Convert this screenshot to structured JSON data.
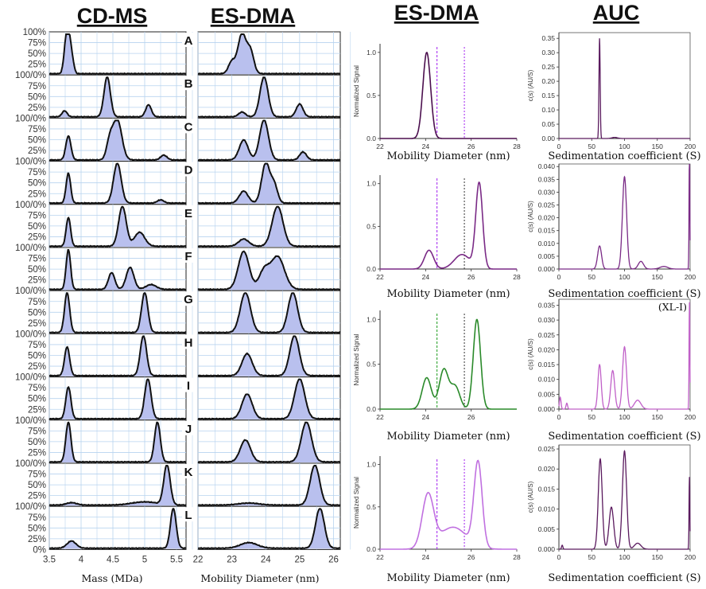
{
  "headers": {
    "cdms": "CD-MS",
    "esdma": "ES-DMA",
    "esdma2": "ES-DMA",
    "auc": "AUC"
  },
  "stack_percent_ticks": [
    "100%",
    "75%",
    "50%",
    "25%",
    "0%"
  ],
  "stack_shared_label": "100/0%",
  "panel_letters": [
    "A",
    "B",
    "C",
    "D",
    "E",
    "F",
    "G",
    "H",
    "I",
    "J",
    "K",
    "L"
  ],
  "colors": {
    "fill": "#b9c0ee",
    "stack_line": "#111111",
    "grid": "#b7d3ef",
    "purple_dark": "#4b0f4e",
    "purple": "#7a2a86",
    "green": "#2a8a2a",
    "lavender": "#c070e0",
    "auc_light": "#c060c8",
    "auc_dark": "#5a1a5e",
    "marker_purple": "#a020f0",
    "marker_green": "#1a9a1a",
    "marker_dark": "#333333"
  },
  "chart_data": [
    {
      "id": "cdms",
      "type": "area",
      "title": "CD-MS",
      "xlabel": "Mass (MDa)",
      "ylabel": "",
      "xlim": [
        3.5,
        5.65
      ],
      "ylim": [
        0,
        100
      ],
      "xticks": [
        3.5,
        4,
        4.5,
        5,
        5.5
      ],
      "xtick_labels": [
        "3.5",
        "4",
        "4.5",
        "5",
        "5.5"
      ],
      "grid": true,
      "panels": [
        {
          "label": "A",
          "peaks": [
            [
              3.8,
              100,
              0.035
            ],
            [
              3.75,
              45,
              0.03
            ],
            [
              3.86,
              30,
              0.03
            ]
          ]
        },
        {
          "label": "B",
          "peaks": [
            [
              3.74,
              15,
              0.04
            ],
            [
              4.41,
              100,
              0.05
            ],
            [
              5.06,
              30,
              0.045
            ]
          ]
        },
        {
          "label": "C",
          "peaks": [
            [
              3.8,
              60,
              0.04
            ],
            [
              4.57,
              100,
              0.07
            ],
            [
              4.45,
              45,
              0.05
            ],
            [
              5.3,
              12,
              0.05
            ]
          ]
        },
        {
          "label": "D",
          "peaks": [
            [
              3.8,
              75,
              0.035
            ],
            [
              4.57,
              100,
              0.06
            ],
            [
              5.25,
              8,
              0.05
            ]
          ]
        },
        {
          "label": "E",
          "peaks": [
            [
              3.8,
              72,
              0.035
            ],
            [
              4.65,
              100,
              0.06
            ],
            [
              4.92,
              35,
              0.08
            ]
          ]
        },
        {
          "label": "F",
          "peaks": [
            [
              3.8,
              100,
              0.035
            ],
            [
              4.48,
              42,
              0.05
            ],
            [
              4.77,
              55,
              0.06
            ],
            [
              5.1,
              12,
              0.08
            ]
          ]
        },
        {
          "label": "G",
          "peaks": [
            [
              3.78,
              100,
              0.04
            ],
            [
              5.0,
              100,
              0.05
            ]
          ]
        },
        {
          "label": "H",
          "peaks": [
            [
              3.78,
              72,
              0.04
            ],
            [
              4.98,
              100,
              0.05
            ]
          ]
        },
        {
          "label": "I",
          "peaks": [
            [
              3.8,
              80,
              0.04
            ],
            [
              5.05,
              100,
              0.05
            ]
          ]
        },
        {
          "label": "J",
          "peaks": [
            [
              3.8,
              100,
              0.04
            ],
            [
              5.2,
              100,
              0.045
            ]
          ]
        },
        {
          "label": "K",
          "peaks": [
            [
              3.85,
              6,
              0.08
            ],
            [
              5.35,
              100,
              0.05
            ],
            [
              5.0,
              8,
              0.2
            ]
          ]
        },
        {
          "label": "L",
          "peaks": [
            [
              3.85,
              18,
              0.07
            ],
            [
              5.45,
              100,
              0.045
            ]
          ]
        }
      ]
    },
    {
      "id": "esdma_stack",
      "type": "area",
      "title": "ES-DMA",
      "xlabel": "Mobility Diameter (nm)",
      "ylabel": "",
      "xlim": [
        22,
        26.2
      ],
      "ylim": [
        0,
        100
      ],
      "xticks": [
        22,
        23,
        24,
        25,
        26
      ],
      "xtick_labels": [
        "22",
        "23",
        "24",
        "25",
        "26"
      ],
      "grid": true,
      "panels": [
        {
          "label": "A",
          "peaks": [
            [
              23.3,
              100,
              0.12
            ],
            [
              23.55,
              55,
              0.1
            ],
            [
              23.0,
              30,
              0.1
            ]
          ]
        },
        {
          "label": "B",
          "peaks": [
            [
              23.3,
              12,
              0.1
            ],
            [
              23.95,
              100,
              0.12
            ],
            [
              25.0,
              32,
              0.1
            ]
          ]
        },
        {
          "label": "C",
          "peaks": [
            [
              23.35,
              50,
              0.13
            ],
            [
              23.95,
              100,
              0.13
            ],
            [
              25.1,
              20,
              0.1
            ]
          ]
        },
        {
          "label": "D",
          "peaks": [
            [
              23.35,
              30,
              0.13
            ],
            [
              24.0,
              100,
              0.12
            ],
            [
              24.25,
              45,
              0.1
            ]
          ]
        },
        {
          "label": "E",
          "peaks": [
            [
              23.35,
              18,
              0.15
            ],
            [
              24.35,
              100,
              0.16
            ]
          ]
        },
        {
          "label": "F",
          "peaks": [
            [
              23.35,
              95,
              0.16
            ],
            [
              24.35,
              82,
              0.2
            ],
            [
              23.95,
              45,
              0.15
            ]
          ]
        },
        {
          "label": "G",
          "peaks": [
            [
              23.4,
              100,
              0.15
            ],
            [
              24.8,
              100,
              0.14
            ]
          ]
        },
        {
          "label": "H",
          "peaks": [
            [
              23.45,
              55,
              0.15
            ],
            [
              24.85,
              100,
              0.14
            ]
          ]
        },
        {
          "label": "I",
          "peaks": [
            [
              23.45,
              62,
              0.15
            ],
            [
              25.0,
              100,
              0.15
            ]
          ]
        },
        {
          "label": "J",
          "peaks": [
            [
              23.4,
              55,
              0.15
            ],
            [
              25.2,
              100,
              0.15
            ]
          ]
        },
        {
          "label": "K",
          "peaks": [
            [
              23.5,
              5,
              0.3
            ],
            [
              25.45,
              100,
              0.14
            ]
          ]
        },
        {
          "label": "L",
          "peaks": [
            [
              23.5,
              14,
              0.25
            ],
            [
              25.6,
              100,
              0.13
            ]
          ]
        }
      ]
    },
    {
      "id": "esdma_1",
      "type": "line",
      "xlabel": "Mobility Diameter (nm)",
      "ylabel": "Normalized Signal",
      "xlim": [
        22,
        28
      ],
      "ylim": [
        0,
        1.1
      ],
      "xticks": [
        22,
        24,
        26,
        28
      ],
      "yticks": [
        0,
        0.5,
        1
      ],
      "ytick_labels": [
        "0.0",
        "0.5",
        "1.0"
      ],
      "markers": [
        24.5,
        25.7
      ],
      "peaks": [
        [
          24.05,
          1.0,
          0.17
        ]
      ]
    },
    {
      "id": "esdma_2",
      "type": "line",
      "xlabel": "Mobility Diameter (nm)",
      "ylabel": "",
      "xlim": [
        22,
        28
      ],
      "ylim": [
        0,
        1.1
      ],
      "xticks": [
        22,
        24,
        26,
        28
      ],
      "yticks": [
        0,
        0.5,
        1
      ],
      "ytick_labels": [
        "0.0",
        "0.5",
        "1.0"
      ],
      "markers": [
        24.5,
        25.7
      ],
      "peaks": [
        [
          24.15,
          0.22,
          0.2
        ],
        [
          25.6,
          0.17,
          0.35
        ],
        [
          26.35,
          1.0,
          0.15
        ]
      ]
    },
    {
      "id": "esdma_3",
      "type": "line",
      "xlabel": "Mobility Diameter (nm)",
      "ylabel": "Normalized Signal",
      "xlim": [
        22,
        28
      ],
      "ylim": [
        0,
        1.1
      ],
      "xticks": [
        22,
        24,
        26
      ],
      "yticks": [
        0,
        0.5,
        1
      ],
      "ytick_labels": [
        "0.0",
        "0.5",
        "1.0"
      ],
      "markers": [
        24.5,
        25.7
      ],
      "peaks": [
        [
          24.05,
          0.35,
          0.2
        ],
        [
          24.8,
          0.44,
          0.2
        ],
        [
          25.3,
          0.25,
          0.2
        ],
        [
          26.25,
          1.0,
          0.16
        ]
      ]
    },
    {
      "id": "esdma_4",
      "type": "line",
      "xlabel": "Mobility Diameter (nm)",
      "ylabel": "Normalized Signal",
      "xlim": [
        22,
        28
      ],
      "ylim": [
        0,
        1.1
      ],
      "xticks": [
        22,
        24,
        26,
        28
      ],
      "yticks": [
        0,
        0.5,
        1
      ],
      "ytick_labels": [
        "0.0",
        "0.5",
        "1.0"
      ],
      "markers": [
        24.5,
        25.7
      ],
      "peaks": [
        [
          24.1,
          0.62,
          0.25
        ],
        [
          25.2,
          0.26,
          0.6
        ],
        [
          26.3,
          1.0,
          0.18
        ]
      ]
    },
    {
      "id": "auc_1",
      "type": "line",
      "xlabel": "Sedimentation coefficient (S)",
      "ylabel": "c(s) (AU/S)",
      "xlim": [
        0,
        200
      ],
      "ylim": [
        0,
        0.37
      ],
      "xticks": [
        0,
        50,
        100,
        150,
        200
      ],
      "yticks": [
        0,
        0.05,
        0.1,
        0.15,
        0.2,
        0.25,
        0.3,
        0.35
      ],
      "ytick_labels": [
        "0.00",
        "0.05",
        "0.10",
        "0.15",
        "0.20",
        "0.25",
        "0.30",
        "0.35"
      ],
      "peaks": [
        [
          62,
          0.35,
          0.9
        ],
        [
          85,
          0.004,
          4
        ]
      ]
    },
    {
      "id": "auc_2",
      "type": "line",
      "xlabel": "Sedimentation coefficient (S)",
      "ylabel": "c(s) (AU/S)",
      "xlim": [
        0,
        200
      ],
      "ylim": [
        0,
        0.041
      ],
      "xticks": [
        0,
        50,
        100,
        150,
        200
      ],
      "yticks": [
        0,
        0.005,
        0.01,
        0.015,
        0.02,
        0.025,
        0.03,
        0.035,
        0.04
      ],
      "ytick_labels": [
        "0.000",
        "0.005",
        "0.010",
        "0.015",
        "0.020",
        "0.025",
        "0.030",
        "0.035",
        "0.040"
      ],
      "peaks": [
        [
          62,
          0.009,
          3
        ],
        [
          100,
          0.036,
          3.2
        ],
        [
          125,
          0.003,
          4
        ],
        [
          160,
          0.001,
          6
        ],
        [
          199,
          0.045,
          0.6
        ]
      ]
    },
    {
      "id": "auc_3",
      "type": "line",
      "annotation": "(XL-I)",
      "xlabel": "Sedimentation coefficient (S)",
      "ylabel": "c(s) (AU/S)",
      "xlim": [
        0,
        200
      ],
      "ylim": [
        0,
        0.037
      ],
      "xticks": [
        0,
        50,
        100,
        150,
        200
      ],
      "yticks": [
        0,
        0.005,
        0.01,
        0.015,
        0.02,
        0.025,
        0.03,
        0.035
      ],
      "ytick_labels": [
        "0.000",
        "0.005",
        "0.010",
        "0.015",
        "0.020",
        "0.025",
        "0.030",
        "0.035"
      ],
      "peaks": [
        [
          2,
          0.004,
          1.2
        ],
        [
          12,
          0.002,
          1.2
        ],
        [
          62,
          0.015,
          2.5
        ],
        [
          82,
          0.013,
          3
        ],
        [
          100,
          0.021,
          3
        ],
        [
          120,
          0.003,
          5
        ],
        [
          199,
          0.036,
          0.6
        ]
      ]
    },
    {
      "id": "auc_4",
      "type": "line",
      "xlabel": "Sedimentation coefficient (S)",
      "ylabel": "c(s) (AU/S)",
      "xlim": [
        0,
        200
      ],
      "ylim": [
        0,
        0.026
      ],
      "xticks": [
        0,
        50,
        100,
        150,
        200
      ],
      "yticks": [
        0,
        0.005,
        0.01,
        0.015,
        0.02,
        0.025
      ],
      "ytick_labels": [
        "0.000",
        "0.005",
        "0.010",
        "0.015",
        "0.020",
        "0.025"
      ],
      "peaks": [
        [
          5,
          0.001,
          1
        ],
        [
          63,
          0.0225,
          3
        ],
        [
          80,
          0.0105,
          3.5
        ],
        [
          100,
          0.0245,
          3.2
        ],
        [
          120,
          0.0015,
          5
        ],
        [
          199,
          0.018,
          0.6
        ]
      ]
    }
  ]
}
